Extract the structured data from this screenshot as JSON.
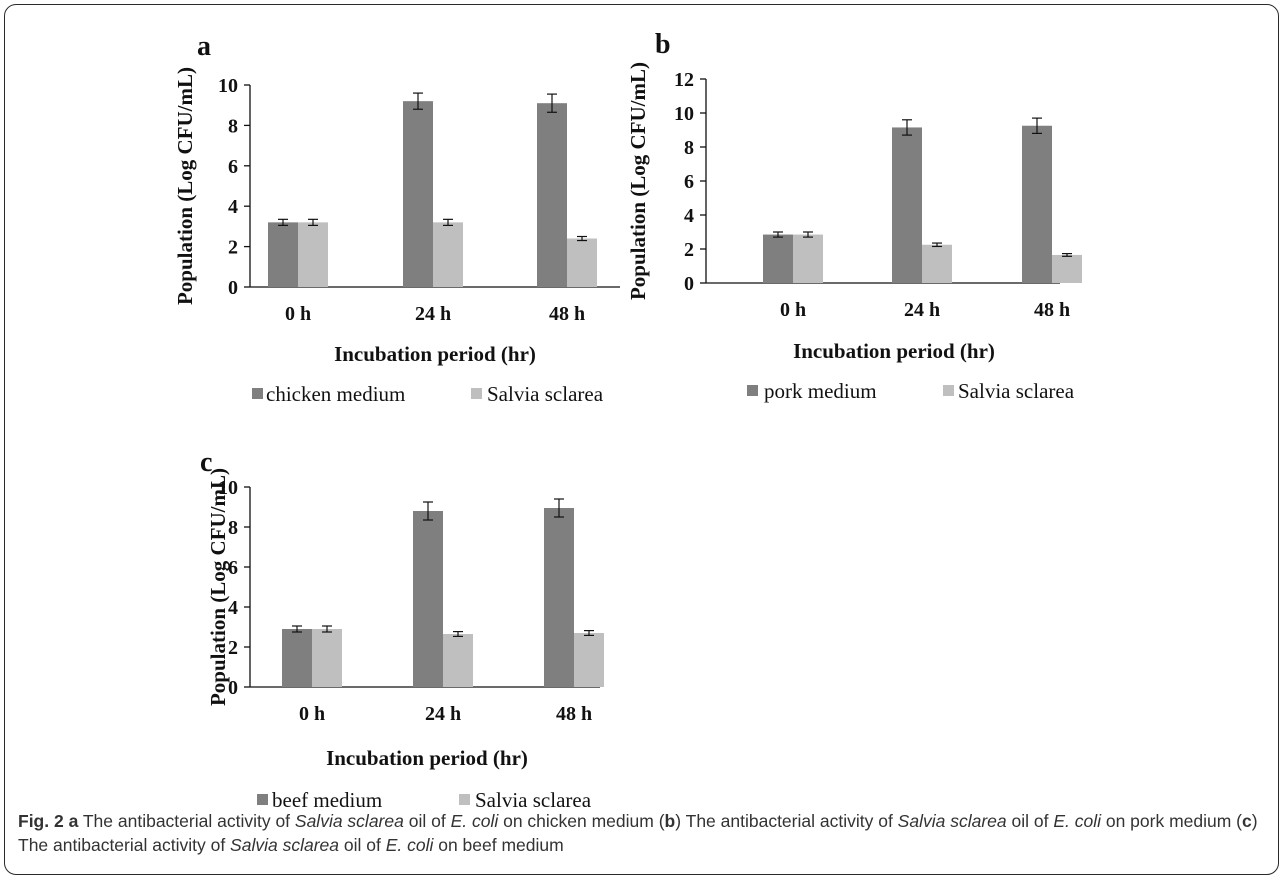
{
  "caption": {
    "label": "Fig. 2",
    "parts": [
      {
        "text": "a",
        "style": "bold"
      },
      {
        "text": " The antibacterial activity of ",
        "style": "normal"
      },
      {
        "text": "Salvia sclarea",
        "style": "italic"
      },
      {
        "text": " oil of ",
        "style": "normal"
      },
      {
        "text": "E. coli",
        "style": "italic"
      },
      {
        "text": " on chicken medium (",
        "style": "normal"
      },
      {
        "text": "b",
        "style": "bold"
      },
      {
        "text": ") The antibacterial activity of ",
        "style": "normal"
      },
      {
        "text": "Salvia sclarea",
        "style": "italic"
      },
      {
        "text": " oil of ",
        "style": "normal"
      },
      {
        "text": "E. coli",
        "style": "italic"
      },
      {
        "text": " on pork medium (",
        "style": "normal"
      },
      {
        "text": "c",
        "style": "bold"
      },
      {
        "text": ") The antibacterial activity of ",
        "style": "normal"
      },
      {
        "text": "Salvia sclarea",
        "style": "italic"
      },
      {
        "text": " oil of ",
        "style": "normal"
      },
      {
        "text": "E. coli",
        "style": "italic"
      },
      {
        "text": " on beef medium",
        "style": "normal"
      }
    ]
  },
  "colors": {
    "dark_bar": "#7f7f7f",
    "light_bar": "#bfbfbf"
  },
  "chart_data": [
    {
      "panel": "a",
      "type": "bar",
      "categories": [
        "0 h",
        "24 h",
        "48 h"
      ],
      "xlabel": "Incubation period (hr)",
      "ylabel": "Population (Log CFU/mL)",
      "ylim": [
        0,
        10
      ],
      "yticks": [
        0,
        2,
        4,
        6,
        8,
        10
      ],
      "legend_position": "bottom",
      "series": [
        {
          "name": "chicken medium",
          "values": [
            3.2,
            9.2,
            9.1
          ],
          "errors": [
            0.15,
            0.4,
            0.45
          ],
          "color": "#7f7f7f"
        },
        {
          "name": "Salvia sclarea",
          "values": [
            3.2,
            3.2,
            2.4
          ],
          "errors": [
            0.15,
            0.15,
            0.1
          ],
          "color": "#bfbfbf"
        }
      ]
    },
    {
      "panel": "b",
      "type": "bar",
      "categories": [
        "0 h",
        "24 h",
        "48 h"
      ],
      "xlabel": "Incubation period (hr)",
      "ylabel": "Population (Log CFU/mL)",
      "ylim": [
        0,
        12
      ],
      "yticks": [
        0,
        2,
        4,
        6,
        8,
        10,
        12
      ],
      "legend_position": "bottom",
      "series": [
        {
          "name": "pork medium",
          "values": [
            2.85,
            9.15,
            9.25
          ],
          "errors": [
            0.15,
            0.45,
            0.45
          ],
          "color": "#7f7f7f"
        },
        {
          "name": "Salvia sclarea",
          "values": [
            2.85,
            2.25,
            1.65
          ],
          "errors": [
            0.15,
            0.1,
            0.08
          ],
          "color": "#bfbfbf"
        }
      ]
    },
    {
      "panel": "c",
      "type": "bar",
      "categories": [
        "0 h",
        "24 h",
        "48 h"
      ],
      "xlabel": "Incubation period (hr)",
      "ylabel": "Population (Log CFU/mL)",
      "ylim": [
        0,
        10
      ],
      "yticks": [
        0,
        2,
        4,
        6,
        8,
        10
      ],
      "legend_position": "bottom",
      "series": [
        {
          "name": "beef medium",
          "values": [
            2.9,
            8.8,
            8.95
          ],
          "errors": [
            0.15,
            0.45,
            0.45
          ],
          "color": "#7f7f7f"
        },
        {
          "name": "Salvia sclarea",
          "values": [
            2.9,
            2.65,
            2.7
          ],
          "errors": [
            0.15,
            0.12,
            0.12
          ],
          "color": "#bfbfbf"
        }
      ]
    }
  ]
}
